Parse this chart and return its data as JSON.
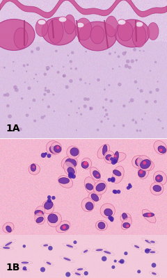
{
  "panel_A_label": "1A",
  "panel_B_label": "1B",
  "panel_A_bg_color": "#e8d4e8",
  "panel_B_bg_color": "#e8b4cc",
  "label_color": "black",
  "label_fontsize": 10,
  "label_fontweight": "bold",
  "fig_width": 2.4,
  "fig_height": 4.0,
  "dpi": 100,
  "border_color": "white",
  "border_lw": 1.5,
  "panel_split": 0.5,
  "top_image_path": null,
  "bottom_image_path": null,
  "top_colors": {
    "background": "#d8c8e0",
    "tissue_pink": "#e080c0",
    "tissue_dark": "#b060a0",
    "stroma": "#c8b0d8",
    "light_lavender": "#e4d0f0"
  },
  "bottom_colors": {
    "background": "#e8a8c8",
    "cell_pink": "#e060a8",
    "cell_dark": "#8030a0",
    "cytoplasm": "#f0b0d0",
    "nucleus": "#6040a0"
  }
}
